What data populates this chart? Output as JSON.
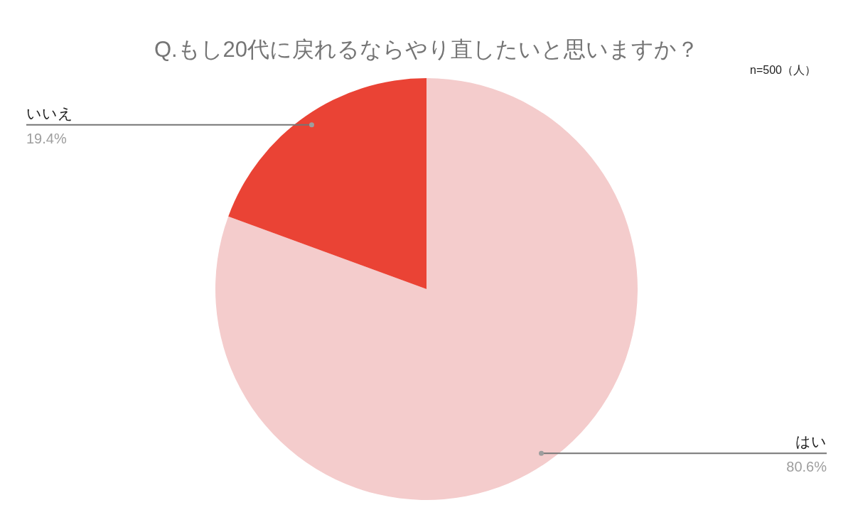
{
  "chart_data": {
    "type": "pie",
    "title": "Q.もし20代に戻れるならやり直したいと思いますか？",
    "annotations": [
      "n=500（人）"
    ],
    "categories": [
      "はい",
      "いいえ"
    ],
    "values": [
      80.6,
      19.4
    ],
    "colors": [
      "#f4cccc",
      "#ea4335"
    ],
    "value_labels": [
      "80.6%",
      "19.4%"
    ],
    "legend": false
  }
}
